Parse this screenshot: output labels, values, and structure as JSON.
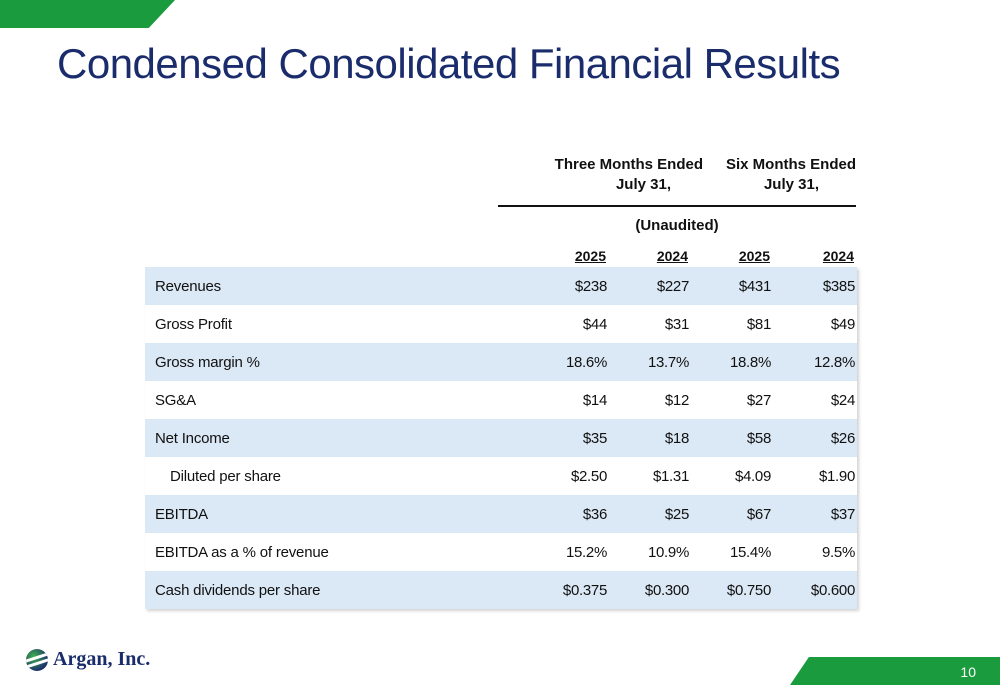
{
  "slide": {
    "title": "Condensed Consolidated Financial Results",
    "page_number": "10",
    "logo_text": "Argan, Inc."
  },
  "table": {
    "period_headers": [
      {
        "line1": "Three Months Ended",
        "line2": "July 31,"
      },
      {
        "line1": "Six Months Ended",
        "line2": "July 31,"
      }
    ],
    "audit_note": "(Unaudited)",
    "years": [
      "2025",
      "2024",
      "2025",
      "2024"
    ],
    "rows": [
      {
        "label": "Revenues",
        "values": [
          "$238",
          "$227",
          "$431",
          "$385"
        ],
        "indent": false
      },
      {
        "label": "Gross Profit",
        "values": [
          "$44",
          "$31",
          "$81",
          "$49"
        ],
        "indent": false
      },
      {
        "label": "Gross margin %",
        "values": [
          "18.6%",
          "13.7%",
          "18.8%",
          "12.8%"
        ],
        "indent": false
      },
      {
        "label": "SG&A",
        "values": [
          "$14",
          "$12",
          "$27",
          "$24"
        ],
        "indent": false
      },
      {
        "label": "Net Income",
        "values": [
          "$35",
          "$18",
          "$58",
          "$26"
        ],
        "indent": false
      },
      {
        "label": "Diluted per share",
        "values": [
          "$2.50",
          "$1.31",
          "$4.09",
          "$1.90"
        ],
        "indent": true
      },
      {
        "label": "EBITDA",
        "values": [
          "$36",
          "$25",
          "$67",
          "$37"
        ],
        "indent": false
      },
      {
        "label": "EBITDA as a % of revenue",
        "values": [
          "15.2%",
          "10.9%",
          "15.4%",
          "9.5%"
        ],
        "indent": false
      },
      {
        "label": "Cash dividends per share",
        "values": [
          "$0.375",
          "$0.300",
          "$0.750",
          "$0.600"
        ],
        "indent": false
      }
    ]
  },
  "colors": {
    "accent_green": "#1a9c3e",
    "title_navy": "#1a2c6b",
    "row_shade": "#dbe8f5"
  }
}
